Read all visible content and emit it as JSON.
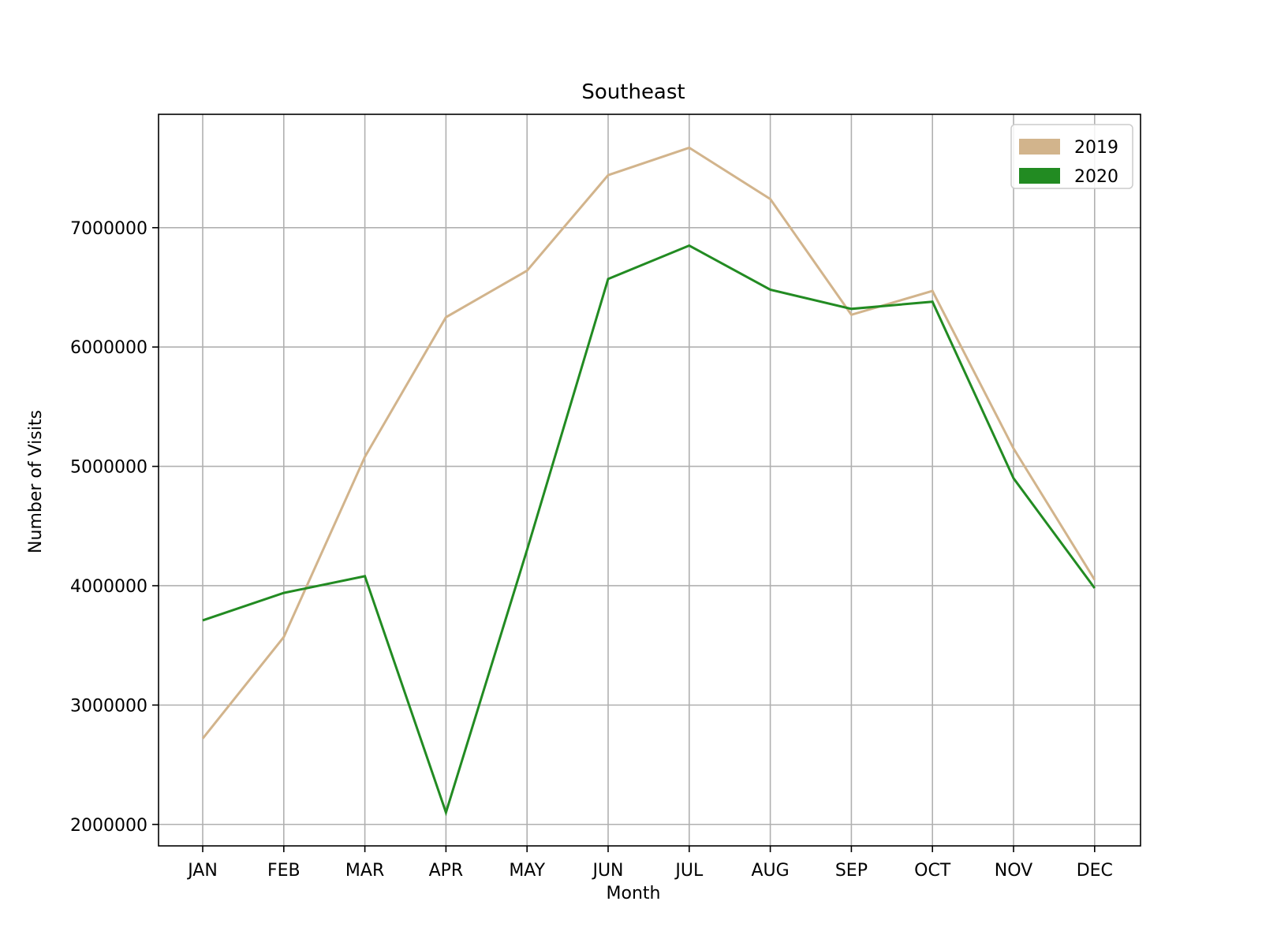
{
  "chart_data": {
    "type": "line",
    "title": "Southeast",
    "xlabel": "Month",
    "ylabel": "Number of Visits",
    "categories": [
      "JAN",
      "FEB",
      "MAR",
      "APR",
      "MAY",
      "JUN",
      "JUL",
      "AUG",
      "SEP",
      "OCT",
      "NOV",
      "DEC"
    ],
    "yticks": [
      2000000,
      3000000,
      4000000,
      5000000,
      6000000,
      7000000
    ],
    "ytick_labels": [
      "2000000",
      "3000000",
      "4000000",
      "5000000",
      "6000000",
      "7000000"
    ],
    "ylim": [
      1820000,
      7950000
    ],
    "grid": true,
    "legend_position": "top-right",
    "series": [
      {
        "name": "2019",
        "color": "#d2b48c",
        "values": [
          2720000,
          3570000,
          5080000,
          6250000,
          6640000,
          7440000,
          7670000,
          7240000,
          6270000,
          6470000,
          5150000,
          4050000
        ]
      },
      {
        "name": "2020",
        "color": "#228b22",
        "values": [
          3710000,
          3940000,
          4080000,
          2100000,
          4300000,
          6570000,
          6850000,
          6480000,
          6320000,
          6380000,
          4900000,
          3980000
        ]
      }
    ]
  }
}
